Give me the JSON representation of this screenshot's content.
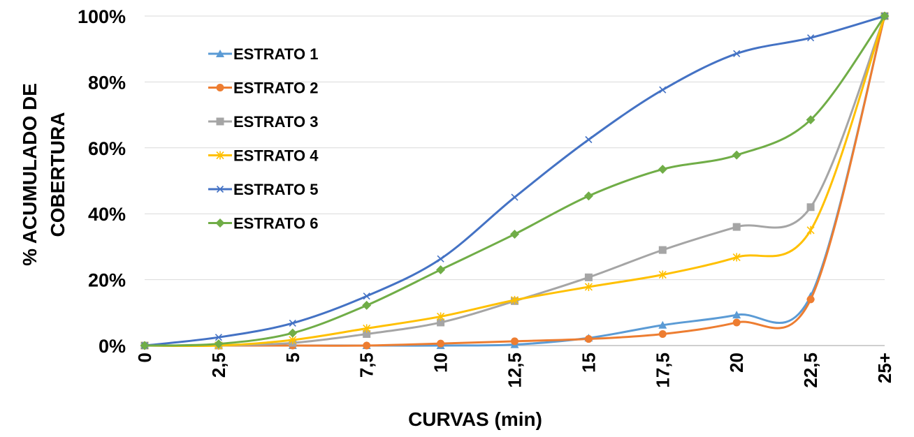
{
  "chart_data": {
    "type": "line",
    "title": "",
    "xlabel": "CURVAS (min)",
    "ylabel": [
      "% ACUMULADO  DE",
      "COBERTURA"
    ],
    "categories": [
      "0",
      "2,5",
      "5",
      "7,5",
      "10",
      "12,5",
      "15",
      "17,5",
      "20",
      "22,5",
      "25+"
    ],
    "y_ticks": [
      "0%",
      "20%",
      "40%",
      "60%",
      "80%",
      "100%"
    ],
    "ylim": [
      0,
      100
    ],
    "grid": true,
    "legend": "upper-left",
    "smooth": true,
    "series": [
      {
        "name": "ESTRATO 1",
        "color": "#5B9BD5",
        "marker": "triangle",
        "values": [
          0,
          0,
          0,
          0,
          0,
          0.3,
          2.3,
          6.2,
          9.3,
          15,
          100
        ]
      },
      {
        "name": "ESTRATO 2",
        "color": "#ED7D31",
        "marker": "circle",
        "values": [
          0,
          0,
          0,
          0,
          0.6,
          1.3,
          2,
          3.5,
          7,
          14,
          100
        ]
      },
      {
        "name": "ESTRATO 3",
        "color": "#A5A5A5",
        "marker": "square",
        "values": [
          0,
          0,
          0.8,
          3.5,
          7,
          13.5,
          20.7,
          29,
          36,
          42,
          100
        ]
      },
      {
        "name": "ESTRATO 4",
        "color": "#FFC000",
        "marker": "star",
        "values": [
          0,
          0,
          1.7,
          5.2,
          8.8,
          13.8,
          17.8,
          21.5,
          26.8,
          35,
          100
        ]
      },
      {
        "name": "ESTRATO 5",
        "color": "#4472C4",
        "marker": "x",
        "values": [
          0,
          2.5,
          6.8,
          15,
          26.3,
          45,
          62.5,
          77.6,
          88.6,
          93.4,
          100
        ]
      },
      {
        "name": "ESTRATO 6",
        "color": "#70AD47",
        "marker": "diamond",
        "values": [
          0,
          0.5,
          3.8,
          12.2,
          23,
          33.8,
          45.4,
          53.5,
          57.8,
          68.5,
          100
        ]
      }
    ]
  }
}
